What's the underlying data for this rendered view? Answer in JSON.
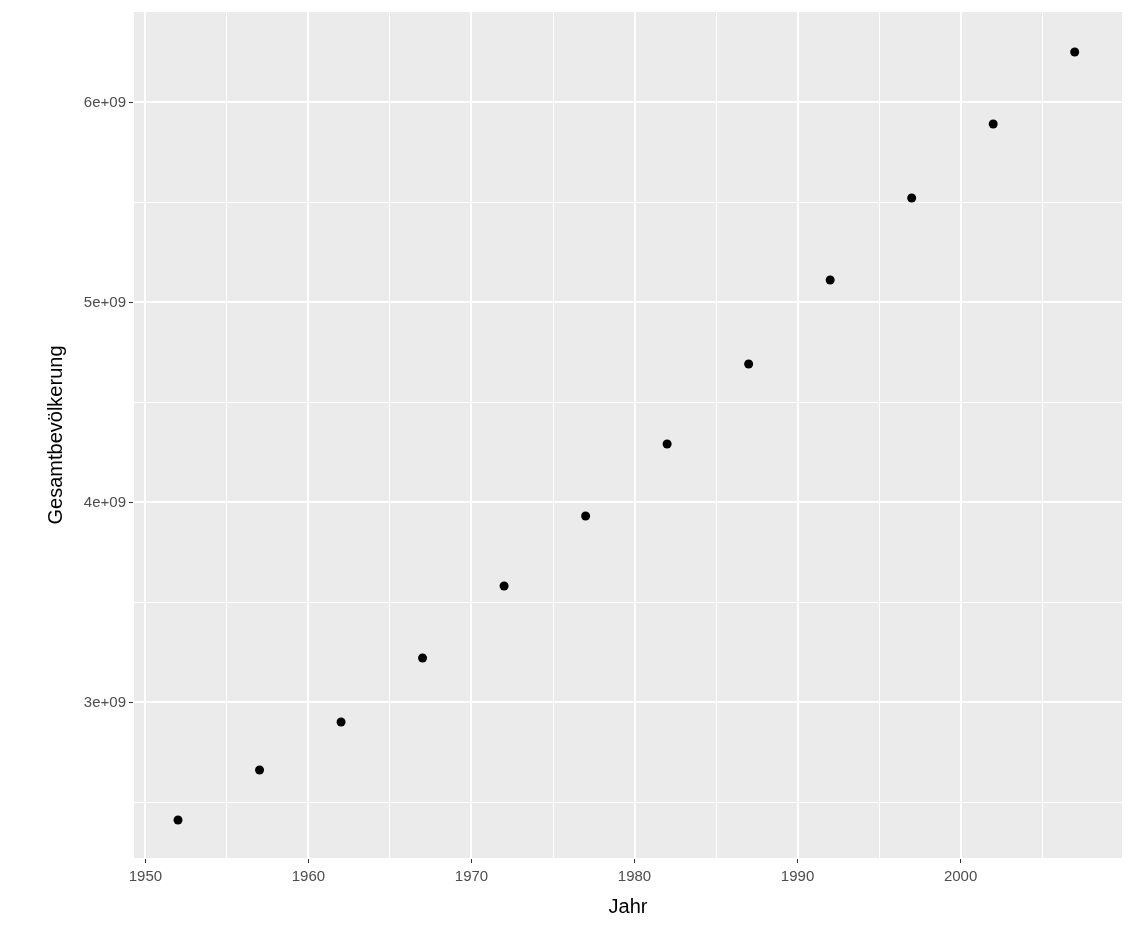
{
  "chart_data": {
    "type": "scatter",
    "xlabel": "Jahr",
    "ylabel": "Gesamtbevölkerung",
    "x": [
      1952,
      1957,
      1962,
      1967,
      1972,
      1977,
      1982,
      1987,
      1992,
      1997,
      2002,
      2007
    ],
    "series": [
      {
        "color": "#000000",
        "values": [
          2410000000,
          2660000000,
          2900000000,
          3220000000,
          3580000000,
          3930000000,
          4290000000,
          4690000000,
          5110000000,
          5520000000,
          5890000000,
          6250000000
        ]
      }
    ],
    "xlim": [
      1949.3,
      2009.9
    ],
    "ylim": [
      2220000000,
      6450000000
    ],
    "xticks": [
      1950,
      1960,
      1970,
      1980,
      1990,
      2000,
      {
        "value": 1955,
        "label": null
      },
      {
        "value": 1965,
        "label": null
      },
      {
        "value": 1975,
        "label": null
      },
      {
        "value": 1985,
        "label": null
      },
      {
        "value": 1995,
        "label": null
      },
      {
        "value": 2005,
        "label": null
      }
    ],
    "yticks": [
      {
        "value": 3000000000,
        "label": "3e+09"
      },
      {
        "value": 4000000000,
        "label": "4e+09"
      },
      {
        "value": 5000000000,
        "label": "5e+09"
      },
      {
        "value": 6000000000,
        "label": "6e+09"
      },
      {
        "value": 2500000000,
        "label": null
      },
      {
        "value": 3500000000,
        "label": null
      },
      {
        "value": 4500000000,
        "label": null
      },
      {
        "value": 5500000000,
        "label": null
      }
    ],
    "grid": true,
    "marker": "circle"
  }
}
